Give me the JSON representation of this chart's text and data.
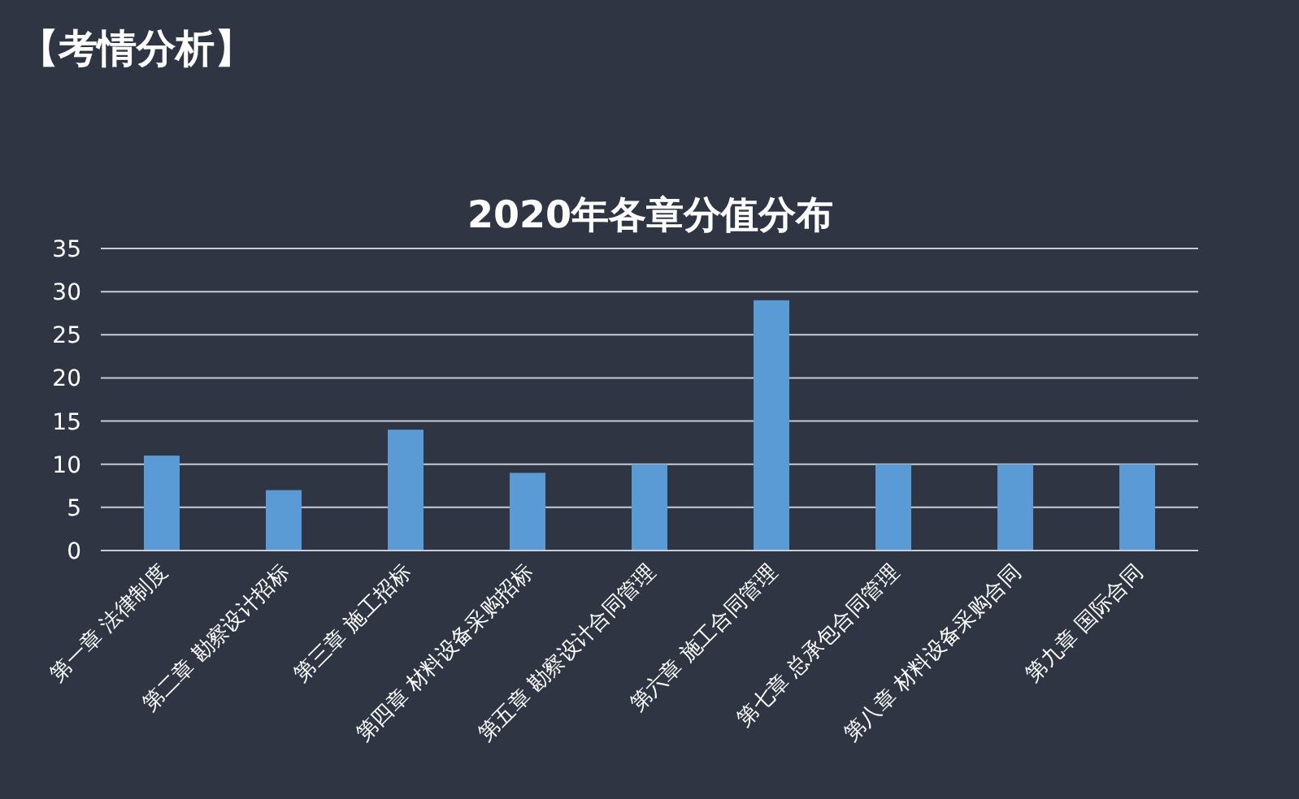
{
  "chart_data": {
    "type": "bar",
    "title": "2020年各章分值分布",
    "annotations": [
      "【考情分析】"
    ],
    "categories": [
      "第一章 法律制度",
      "第二章 勘察设计招标",
      "第三章 施工招标",
      "第四章 材料设备采购招标",
      "第五章 勘察设计合同管理",
      "第六章 施工合同管理",
      "第七章 总承包合同管理",
      "第八章 材料设备采购合同",
      "第九章 国际合同"
    ],
    "values": [
      11,
      7,
      14,
      9,
      10,
      29,
      10,
      10,
      10
    ],
    "color": "#5b9bd5",
    "ylim": [
      0,
      35
    ],
    "yticks": [
      0,
      5,
      10,
      15,
      20,
      25,
      30,
      35
    ],
    "grid": "y"
  }
}
